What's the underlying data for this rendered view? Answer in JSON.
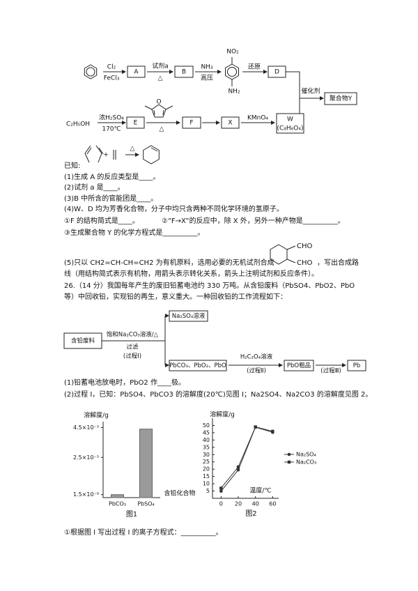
{
  "scheme": {
    "cl2": "Cl₂",
    "fecl3": "FeCl₃",
    "a": "A",
    "reagent_a": "试剂a",
    "heat_1": "△",
    "b": "B",
    "nh3": "NH₃",
    "pressure": "高压",
    "no2": "NO₂",
    "nh2": "NH₂",
    "reduce": "还原",
    "d": "D",
    "catalyst": "催化剂",
    "polymer_y": "聚合物Y",
    "ethanol": "C₂H₅OH",
    "acid": "浓H₂SO₄",
    "temp": "170℃",
    "e": "E",
    "o": "O",
    "heat_2": "△",
    "f": "F",
    "x": "X",
    "kmno4": "KMnO₄",
    "w": "W",
    "w_formula": "(C₈H₆O₄)",
    "plus": "+",
    "heat_3": "△",
    "cho_top": "CHO",
    "cho_bottom": "CHO"
  },
  "questions": {
    "known": "已知:",
    "q1": "(1)生成 A 的反应类型是____。",
    "q2": "(2)试剂 a 是____。",
    "q3": "(3)B 中所含的官能团是____。",
    "q4": "(4)W、D 均为芳香化合物，分子中均只含两种不同化学环境的氢原子。",
    "q4_1": "①F 的结构简式是____。",
    "q4_2": "②“F→X”的反应中，除 X 外，另外一种产物是__________。",
    "q4_3": "③生成聚合物 Y 的化学方程式是__________。",
    "q5_a": "(5)只以 CH2=CH-CH=CH2 为有机原料，选用必要的无机试剂合成",
    "q5_b": "，写出合成路",
    "q5_c": "线（用结构简式表示有机物，用箭头表示转化关系，箭头上注明试剂和反应条件）。"
  },
  "problem_26": {
    "intro_1": "26.（14 分）我国每年产生的废旧铅蓄电池约 330 万吨。从含铅废料（PbSO4、PbO2、PbO",
    "intro_2": "等）中回收铅，实现铅的再生，意义重大。一种回收铅的工作流程如下：",
    "flow": {
      "waste": "含铅废料",
      "na2co3": "饱和Na₂CO₃溶液/△",
      "filter": "过滤",
      "step1": "(过程Ⅰ)",
      "na2so4": "Na₂SO₄溶液",
      "solid": "PbCO₃、PbO₂、PbO",
      "h2c2o4": "H₂C₂O₄溶液",
      "step2": "(过程Ⅱ)",
      "crude": "PbO粗品",
      "step3": "(过程Ⅲ)",
      "pb": "Pb"
    },
    "q1": "(1)铅蓄电池放电时，PbO2 作____极。",
    "q2": "(2)过程 I，已知：PbSO4、PbCO3 的溶解度(20℃)见图 I；Na2SO4、Na2CO3 的溶解度见图 2。",
    "q2_1": "①根据图 I 写出过程 I 的离子方程式：__________。"
  },
  "chart_data": [
    {
      "type": "bar",
      "ylabel": "溶解度/g",
      "xlabel": "含铅化合物",
      "caption": "图1",
      "categories": [
        "PbCO₃",
        "PbSO₄"
      ],
      "values": [
        1.5e-08,
        0.0044
      ],
      "color": "#9a9a9a",
      "ylim": [
        -0.0002,
        0.0049
      ],
      "yticks": [
        {
          "value": 1.5e-08,
          "label": "1.5×10⁻⁸"
        },
        {
          "value": 0.0025,
          "label": "2.5×10⁻³"
        },
        {
          "value": 0.0045,
          "label": "4.5×10⁻³"
        }
      ]
    },
    {
      "type": "line",
      "ylabel": "溶解度/g",
      "xlabel": "温度/℃",
      "caption": "图2",
      "x": [
        0,
        20,
        40,
        60
      ],
      "xlim": [
        -10,
        67
      ],
      "ylim": [
        0,
        55
      ],
      "xticks": [
        0,
        20,
        40,
        60
      ],
      "yticks": [
        5,
        10,
        15,
        20,
        25,
        30,
        35,
        40,
        45,
        50
      ],
      "series": [
        {
          "name": "Na₂SO₄",
          "color": "#333333",
          "marker": "circle",
          "values": [
            4.9,
            19.5,
            48.8,
            45.3
          ]
        },
        {
          "name": "Na₂CO₃",
          "color": "#333333",
          "marker": "square",
          "values": [
            7,
            21.5,
            49,
            46
          ]
        }
      ]
    }
  ]
}
